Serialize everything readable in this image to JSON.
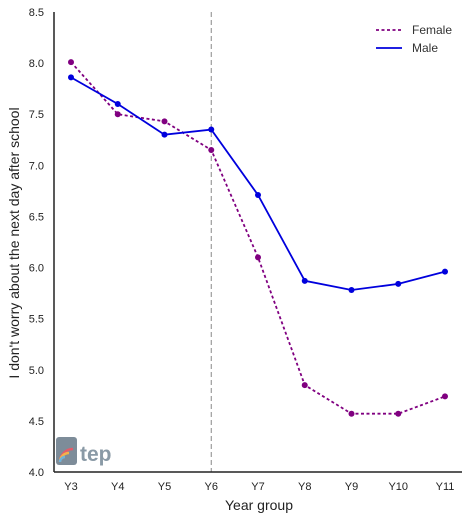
{
  "chart_data": {
    "type": "line",
    "xlabel": "Year group",
    "ylabel": "I don't worry about the next day after school",
    "categories": [
      "Y3",
      "Y4",
      "Y5",
      "Y6",
      "Y7",
      "Y8",
      "Y9",
      "Y10",
      "Y11"
    ],
    "ylim": [
      4.0,
      8.5
    ],
    "yticks": [
      "4.0",
      "4.5",
      "5.0",
      "5.5",
      "6.0",
      "6.5",
      "7.0",
      "7.5",
      "8.0",
      "8.5"
    ],
    "grid": false,
    "legend_position": "top-right",
    "reference_line": {
      "category": "Y6",
      "style": "dashed",
      "color": "#888888"
    },
    "series": [
      {
        "name": "Female",
        "values": [
          8.01,
          7.5,
          7.43,
          7.15,
          6.1,
          4.85,
          4.57,
          4.57,
          4.74
        ],
        "color": "#800080",
        "style": "dotted"
      },
      {
        "name": "Male",
        "values": [
          7.86,
          7.6,
          7.3,
          7.35,
          6.71,
          5.87,
          5.78,
          5.84,
          5.96
        ],
        "color": "#0000dd",
        "style": "solid"
      }
    ],
    "logo_text": "tep"
  }
}
